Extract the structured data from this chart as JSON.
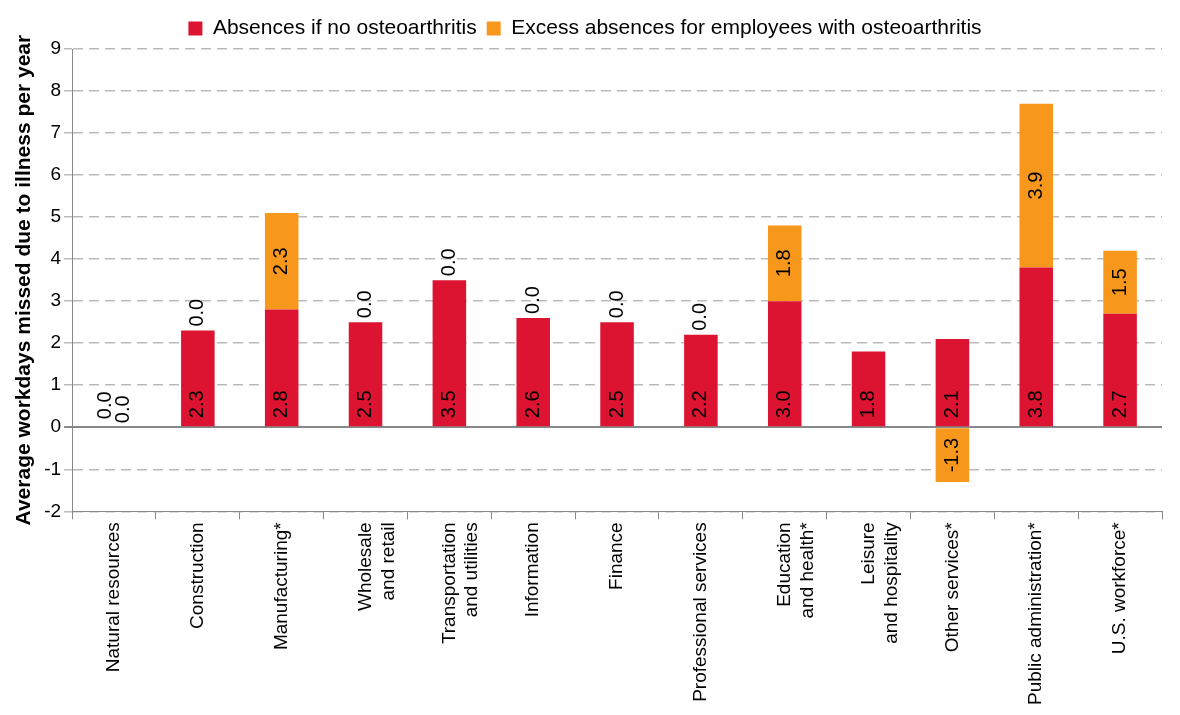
{
  "chart_data": {
    "type": "bar",
    "stacked": true,
    "ylabel": "Average workdays missed due to illness per year",
    "categories": [
      "Natural resources",
      "Construction",
      "Manufacturing*",
      "Wholesale\nand retail",
      "Transportation\nand utilities",
      "Information",
      "Finance",
      "Professional services",
      "Education\nand health*",
      "Leisure\nand hospitality",
      "Other services*",
      "Public administration*",
      "U.S. workforce*"
    ],
    "series": [
      {
        "name": "Absences if no osteoarthritis",
        "color": "#dc1431",
        "values": [
          0.0,
          2.3,
          2.8,
          2.5,
          3.5,
          2.6,
          2.5,
          2.2,
          3.0,
          1.8,
          2.1,
          3.8,
          2.7
        ],
        "value_labels": [
          "0.0",
          "2.3",
          "2.8",
          "2.5",
          "3.5",
          "2.6",
          "2.5",
          "2.2",
          "3.0",
          "1.8",
          "2.1",
          "3.8",
          "2.7"
        ]
      },
      {
        "name": "Excess absences for employees with osteoarthritis",
        "color": "#f7981d",
        "values": [
          0.0,
          0.0,
          2.3,
          0.0,
          0.0,
          0.0,
          0.0,
          0.0,
          1.8,
          null,
          -1.3,
          3.9,
          1.5
        ],
        "value_labels": [
          "0.0",
          "0.0",
          "2.3",
          "0.0",
          "0.0",
          "0.0",
          "0.0",
          "0.0",
          "1.8",
          null,
          "-1.3",
          "3.9",
          "1.5"
        ]
      }
    ],
    "ylim": [
      -2,
      9
    ],
    "yticks": [
      -2,
      -1,
      0,
      1,
      2,
      3,
      4,
      5,
      6,
      7,
      8,
      9
    ],
    "grid": "y",
    "legend": "top"
  }
}
